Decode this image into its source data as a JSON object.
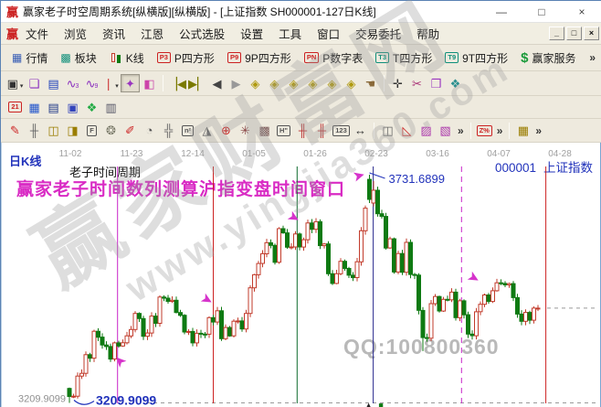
{
  "window": {
    "logo": "赢",
    "title": "赢家老子时空周期系统[纵横版][纵横版] - [上证指数  SH000001-127日K线]",
    "controls": {
      "minimize": "—",
      "maximize": "□",
      "close": "×"
    }
  },
  "menu": {
    "logo": "赢",
    "items": [
      "文件",
      "浏览",
      "资讯",
      "江恩",
      "公式选股",
      "设置",
      "工具",
      "窗口",
      "交易委托",
      "帮助"
    ],
    "mdi": [
      "_",
      "□",
      "×"
    ]
  },
  "toolbars": {
    "overflow_glyph": "»",
    "main": {
      "items": [
        {
          "label": "行情",
          "name": "quotes-button",
          "icon": {
            "type": "glyph",
            "glyph": "▦",
            "color": "#3a5fb5"
          }
        },
        {
          "label": "板块",
          "name": "sectors-button",
          "icon": {
            "type": "glyph",
            "glyph": "▩",
            "color": "#0f8f7a"
          }
        },
        {
          "label": "K线",
          "name": "kline-button",
          "icon": {
            "type": "kline"
          }
        },
        {
          "label": "P四方形",
          "name": "p-square-button",
          "icon": {
            "type": "badge",
            "text": "P3",
            "color": "#cc2222"
          }
        },
        {
          "label": "9P四方形",
          "name": "9p-square-button",
          "icon": {
            "type": "badge",
            "text": "P9",
            "color": "#cc2222"
          }
        },
        {
          "label": "P数字表",
          "name": "p-number-button",
          "icon": {
            "type": "badge",
            "text": "PN",
            "color": "#cc2222"
          }
        },
        {
          "label": "T四方形",
          "name": "t-square-button",
          "icon": {
            "type": "badge",
            "text": "T3",
            "color": "#0f8f7a"
          }
        },
        {
          "label": "9T四方形",
          "name": "9t-square-button",
          "icon": {
            "type": "badge",
            "text": "T9",
            "color": "#0f8f7a"
          }
        },
        {
          "label": "赢家服务",
          "name": "winner-service-button",
          "icon": {
            "type": "glyph",
            "glyph": "$",
            "color": "#1a9a3a"
          }
        }
      ]
    },
    "tools": {
      "items": [
        {
          "type": "dropdown",
          "glyph": "▣",
          "color": "#333333",
          "name": "period-selector"
        },
        {
          "type": "glyph",
          "glyph": "❏",
          "color": "#8a2fbf",
          "name": "pattern-tool-icon"
        },
        {
          "type": "glyph",
          "glyph": "▤",
          "color": "#2244bb",
          "name": "list-tool-icon"
        },
        {
          "type": "glyph",
          "glyph": "∿",
          "sub": "3",
          "color": "#8a2fbf",
          "name": "wave-3-tool-icon"
        },
        {
          "type": "glyph",
          "glyph": "∿",
          "sub": "9",
          "color": "#8a2fbf",
          "name": "wave-9-tool-icon"
        },
        {
          "type": "dropdown",
          "glyph": "❘",
          "color": "#cc3333",
          "name": "bar-style-selector"
        },
        {
          "type": "glyph",
          "glyph": "✦",
          "color": "#9a35c0",
          "pressed": true,
          "name": "time-cycle-tool-icon"
        },
        {
          "type": "glyph",
          "glyph": "◧",
          "color": "#cc44aa",
          "name": "color-chart-tool-icon"
        },
        {
          "type": "sep"
        },
        {
          "type": "glyph",
          "glyph": "▕◀",
          "color": "#7a7a00",
          "name": "first-bar-button"
        },
        {
          "type": "glyph",
          "glyph": "▶▏",
          "color": "#7a7a00",
          "name": "last-bar-button"
        },
        {
          "type": "glyph",
          "glyph": "◀",
          "color": "#444444",
          "name": "prev-bar-button"
        },
        {
          "type": "glyph",
          "glyph": "▶",
          "color": "#999999",
          "name": "next-bar-button"
        },
        {
          "type": "glyph",
          "glyph": "◈",
          "color": "#b09a10",
          "name": "pan-left-diamond-button"
        },
        {
          "type": "glyph",
          "glyph": "◈",
          "color": "#b09a10",
          "name": "pan-right-diamond-button"
        },
        {
          "type": "glyph",
          "glyph": "◈",
          "color": "#b09a10",
          "name": "h-expand-diamond-button"
        },
        {
          "type": "glyph",
          "glyph": "◈",
          "color": "#b09a10",
          "name": "compress-diamond-button"
        },
        {
          "type": "glyph",
          "glyph": "◈",
          "color": "#b09a10",
          "name": "expand-diamond-button"
        },
        {
          "type": "glyph",
          "glyph": "◈",
          "color": "#b09a10",
          "name": "full-view-diamond-button"
        },
        {
          "type": "glyph",
          "glyph": "☚",
          "color": "#8a6a3a",
          "name": "hand-tool-icon"
        },
        {
          "type": "sep"
        },
        {
          "type": "glyph",
          "glyph": "✛",
          "color": "#333333",
          "name": "crosshair-tool-icon"
        },
        {
          "type": "glyph",
          "glyph": "✂",
          "color": "#aa3377",
          "name": "cut-tool-icon"
        },
        {
          "type": "glyph",
          "glyph": "❒",
          "color": "#9a35c0",
          "name": "stamp-tool-icon"
        },
        {
          "type": "glyph",
          "glyph": "❖",
          "color": "#2a8f8f",
          "name": "map-tool-icon"
        }
      ]
    },
    "utility": {
      "items": [
        {
          "type": "badge",
          "text": "21",
          "color": "#cc2222",
          "name": "calendar-icon"
        },
        {
          "type": "glyph",
          "glyph": "▦",
          "color": "#2255cc",
          "name": "calculator-icon"
        },
        {
          "type": "glyph",
          "glyph": "▤",
          "color": "#223a88",
          "name": "notes-icon"
        },
        {
          "type": "glyph",
          "glyph": "▣",
          "color": "#3344bb",
          "name": "save-icon"
        },
        {
          "type": "glyph",
          "glyph": "❖",
          "color": "#22aa44",
          "name": "export-icon"
        },
        {
          "type": "glyph",
          "glyph": "▥",
          "color": "#555566",
          "name": "print-icon"
        }
      ]
    },
    "drawing": {
      "items": [
        {
          "type": "glyph",
          "glyph": "✎",
          "color": "#cc2222",
          "name": "pen-tool-icon"
        },
        {
          "type": "glyph",
          "glyph": "╫",
          "color": "#666666",
          "name": "grid-lines-tool-icon"
        },
        {
          "type": "glyph",
          "glyph": "◫",
          "color": "#9a7d00",
          "name": "gold-grid-1-tool-icon"
        },
        {
          "type": "glyph",
          "glyph": "◨",
          "color": "#9a7d00",
          "name": "gold-grid-2-tool-icon"
        },
        {
          "type": "badge",
          "text": "F",
          "color": "#555555",
          "name": "fibonacci-tool-icon"
        },
        {
          "type": "glyph",
          "glyph": "❂",
          "color": "#777766",
          "name": "spiral-tool-icon"
        },
        {
          "type": "glyph",
          "glyph": "✐",
          "color": "#cc2222",
          "name": "trend-pen-tool-icon"
        },
        {
          "type": "glyph",
          "glyph": "◔",
          "color": "#555555",
          "name": "time-clock-tool-icon"
        },
        {
          "type": "glyph",
          "glyph": "╬",
          "color": "#666666",
          "name": "grid-2-tool-icon"
        },
        {
          "type": "badge",
          "text": "n²",
          "color": "#555555",
          "name": "n-square-tool-icon"
        },
        {
          "type": "glyph",
          "glyph": "◮",
          "color": "#666666",
          "name": "angle-tool-icon"
        },
        {
          "type": "glyph",
          "glyph": "⊕",
          "color": "#cc2222",
          "name": "gann-circle-tool-icon"
        },
        {
          "type": "glyph",
          "glyph": "✳",
          "color": "#884444",
          "name": "starburst-tool-icon"
        },
        {
          "type": "glyph",
          "glyph": "▩",
          "color": "#775555",
          "name": "square-pattern-tool-icon"
        },
        {
          "type": "badge",
          "text": "H\"",
          "color": "#555555",
          "name": "h-marks-tool-icon"
        },
        {
          "type": "glyph",
          "glyph": "╫",
          "color": "#bb3333",
          "name": "shen-grid-tool-icon"
        },
        {
          "type": "glyph",
          "glyph": "╫",
          "color": "#bb3333",
          "name": "ying-grid-tool-icon"
        },
        {
          "type": "badge",
          "text": "123",
          "color": "#555555",
          "name": "abacus-tool-icon"
        },
        {
          "type": "glyph",
          "glyph": "↔",
          "color": "#333333",
          "name": "span-measure-tool-icon"
        },
        {
          "type": "sep"
        },
        {
          "type": "glyph",
          "glyph": "◫",
          "color": "#666666",
          "name": "frame-tool-icon"
        },
        {
          "type": "glyph",
          "glyph": "◺",
          "color": "#cc2222",
          "name": "fan-lines-tool-icon"
        },
        {
          "type": "glyph",
          "glyph": "▨",
          "color": "#aa33aa",
          "name": "box-pattern-1-tool-icon"
        },
        {
          "type": "glyph",
          "glyph": "▧",
          "color": "#aa33aa",
          "name": "box-pattern-2-tool-icon"
        },
        {
          "type": "chev",
          "glyph": "»",
          "name": "drawing-overflow-chevron-1"
        },
        {
          "type": "sep"
        },
        {
          "type": "badge",
          "text": "Z%",
          "color": "#cc2222",
          "name": "percent-tool-icon"
        },
        {
          "type": "chev",
          "glyph": "»",
          "name": "drawing-overflow-chevron-2"
        },
        {
          "type": "sep"
        },
        {
          "type": "glyph",
          "glyph": "▦",
          "color": "#9a7d00",
          "name": "gold-grid-3-tool-icon"
        },
        {
          "type": "chev",
          "glyph": "»",
          "name": "drawing-overflow-chevron-3"
        }
      ]
    }
  },
  "chart": {
    "period_label": "日K线",
    "cycle_label": "老子时间周期",
    "headline": "赢家老子时间数列测算沪指变盘时间窗口",
    "symbol_code": "000001",
    "symbol_name": "上证指数",
    "qq_watermark": "QQ:100800360",
    "site_watermark_text": "赢家财富网",
    "site_watermark_url": "www.yingjia360.com",
    "colors": {
      "up": "#c23b2b",
      "down": "#0e7a12",
      "headline": "#d92bc4",
      "arrow": "#d633cb",
      "price_label": "#2233bb",
      "gray_label": "#909090",
      "date_label": "#a0a0a0"
    },
    "chart_data": {
      "type": "candlestick",
      "title": "上证指数 SH000001 127日K线 日K线",
      "x_tick_labels": [
        "11-02",
        "11-23",
        "12-14",
        "01-05",
        "01-26",
        "02-23",
        "03-16",
        "04-07",
        "04-28"
      ],
      "grid": false,
      "ylim": [
        3195,
        3745
      ],
      "period_high": 3731.6899,
      "period_low": 3209.9099,
      "last_price": 3426.6,
      "peak_price_label": "3731.6899",
      "low_price_label_gray": "3209.9099",
      "low_price_label_blue": "3209.9099",
      "closes": [
        3224.5,
        3225.1,
        3271.1,
        3277.4,
        3320.1,
        3312.2,
        3373.7,
        3360.2,
        3342.2,
        3338.7,
        3310.1,
        3347.0,
        3339.9,
        3347.3,
        3363.1,
        3377.7,
        3414.5,
        3402.8,
        3362.3,
        3369.7,
        3408.3,
        3391.8,
        3451.9,
        3449.4,
        3442.1,
        3444.6,
        3416.6,
        3410.2,
        3372.0,
        3373.3,
        3347.2,
        3369.1,
        3367.2,
        3367.0,
        3404.9,
        3394.9,
        3420.6,
        3356.8,
        3382.3,
        3363.1,
        3396.6,
        3397.3,
        3379.0,
        3414.5,
        3473.1,
        3503.0,
        3528.7,
        3550.9,
        3576.2,
        3570.1,
        3531.5,
        3608.3,
        3598.7,
        3565.9,
        3566.4,
        3596.2,
        3566.4,
        3583.1,
        3621.3,
        3606.8,
        3624.2,
        3569.4,
        3573.3,
        3505.2,
        3483.1,
        3505.3,
        3533.7,
        3517.3,
        3501.9,
        3496.3,
        3532.5,
        3603.5,
        3655.1,
        3675.4,
        3696.2,
        3642.4,
        3636.4,
        3564.1,
        3585.1,
        3509.1,
        3551.4,
        3508.6,
        3576.9,
        3503.5,
        3502.0,
        3421.4,
        3359.3,
        3357.7,
        3436.8,
        3453.1,
        3420.0,
        3446.7,
        3445.6,
        3463.1,
        3404.7,
        3443.4,
        3411.5,
        3367.1,
        3363.6,
        3418.3,
        3435.3,
        3456.7,
        3441.9,
        3466.3,
        3484.4,
        3483.0,
        3479.6,
        3482.6,
        3450.7,
        3413.0,
        3396.5,
        3416.7,
        3399.0,
        3426.6,
        3426.6
      ],
      "open_overrides": {
        "0": 3243.0,
        "73": 3721.1,
        "74": 3667.0
      },
      "high_overrides": {
        "73": 3731.6899,
        "74": 3717.0
      },
      "low_overrides": {
        "0": 3209.9099,
        "86": 3328.3
      },
      "cycle_lines": [
        {
          "bar": 11.7,
          "color": "#c825c8",
          "dash": false
        },
        {
          "bar": 35.0,
          "color": "#cc2222",
          "dash": false
        },
        {
          "bar": 55.4,
          "color": "#0e6b2e",
          "dash": false
        },
        {
          "bar": 73.9,
          "color": "#28288c",
          "dash": false
        },
        {
          "bar": 95.4,
          "color": "#c825c8",
          "dash": true
        },
        {
          "bar": 115.9,
          "color": "#cc2222",
          "dash": false
        }
      ],
      "arrows": [
        {
          "bar": 13.1,
          "price": 3313,
          "rotation": -135
        },
        {
          "bar": 32.9,
          "price": 3437,
          "rotation": 30
        },
        {
          "bar": 54.0,
          "price": 3625,
          "rotation": 30
        },
        {
          "bar": 70.7,
          "price": 3719,
          "rotation": -15
        },
        {
          "bar": 97.8,
          "price": 3487,
          "rotation": 30
        }
      ],
      "bottom_markers": [
        {
          "bar": 72.8,
          "glyph": "▲",
          "color": "#222222"
        },
        {
          "bar": 75.8,
          "glyph": "■",
          "color": "#0e7a12"
        }
      ],
      "dashed_levels": [
        {
          "price": 3426.6,
          "from_x": 597,
          "to_x": 652
        },
        {
          "price": 3209.9099,
          "from_x": 158,
          "to_x": 652
        }
      ]
    }
  }
}
